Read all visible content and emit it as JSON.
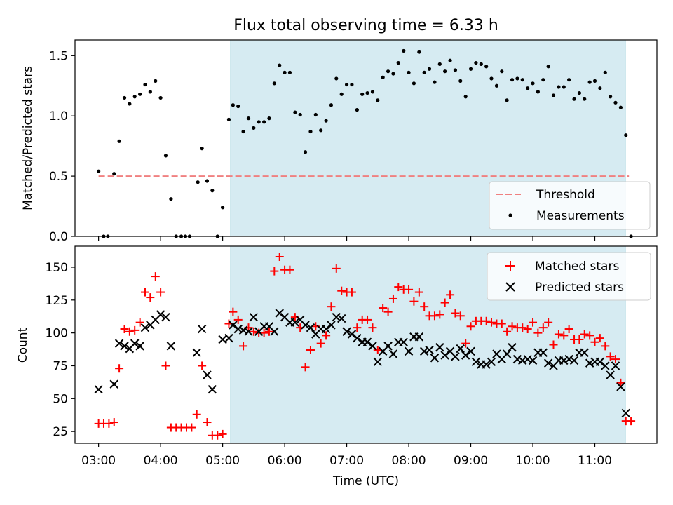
{
  "chart_data": [
    {
      "type": "scatter",
      "title": "Flux total observing time = 6.33 h",
      "ylabel": "Matched/Predicted stars",
      "xlabel": "",
      "x_unit": "hours UTC",
      "xlim": [
        2.62,
        12.0
      ],
      "ylim": [
        0,
        1.63
      ],
      "yticks": [
        0.0,
        0.5,
        1.0,
        1.5
      ],
      "ytick_labels": [
        "0.0",
        "0.5",
        "1.0",
        "1.5"
      ],
      "shaded_span": {
        "x_start": 5.1,
        "x_end": 11.42,
        "color": "#add8e6"
      },
      "threshold": {
        "name": "Threshold",
        "y": 0.5,
        "x_range": [
          3.0,
          11.55
        ],
        "color": "#f08080",
        "style": "dashed"
      },
      "series": [
        {
          "name": "Measurements",
          "marker": "dot",
          "color": "#000000",
          "x": [
            3.0,
            3.083,
            3.15,
            3.25,
            3.333,
            3.417,
            3.5,
            3.583,
            3.667,
            3.75,
            3.833,
            3.917,
            4.0,
            4.083,
            4.167,
            4.25,
            4.333,
            4.4,
            4.467,
            4.6,
            4.667,
            4.75,
            4.833,
            4.917,
            5.0,
            5.1,
            5.167,
            5.25,
            5.333,
            5.417,
            5.5,
            5.583,
            5.667,
            5.75,
            5.833,
            5.917,
            6.0,
            6.083,
            6.167,
            6.25,
            6.333,
            6.417,
            6.5,
            6.583,
            6.667,
            6.75,
            6.833,
            6.917,
            7.0,
            7.083,
            7.167,
            7.25,
            7.333,
            7.417,
            7.5,
            7.583,
            7.667,
            7.75,
            7.833,
            7.917,
            8.0,
            8.083,
            8.167,
            8.25,
            8.333,
            8.417,
            8.5,
            8.583,
            8.667,
            8.75,
            8.833,
            8.917,
            9.0,
            9.083,
            9.167,
            9.25,
            9.333,
            9.417,
            9.5,
            9.583,
            9.667,
            9.75,
            9.833,
            9.917,
            10.0,
            10.083,
            10.167,
            10.25,
            10.333,
            10.417,
            10.5,
            10.583,
            10.667,
            10.75,
            10.833,
            10.917,
            11.0,
            11.083,
            11.167,
            11.25,
            11.333,
            11.417,
            11.5,
            11.583
          ],
          "y": [
            0.54,
            0.0,
            0.0,
            0.52,
            0.79,
            1.15,
            1.1,
            1.16,
            1.18,
            1.26,
            1.2,
            1.29,
            1.15,
            0.67,
            0.31,
            0.0,
            0.0,
            0.0,
            0.0,
            0.45,
            0.73,
            0.46,
            0.38,
            0.0,
            0.24,
            0.97,
            1.09,
            1.08,
            0.87,
            0.98,
            0.9,
            0.95,
            0.95,
            0.98,
            1.27,
            1.42,
            1.36,
            1.36,
            1.03,
            1.01,
            0.7,
            0.87,
            1.01,
            0.88,
            0.96,
            1.09,
            1.31,
            1.18,
            1.26,
            1.26,
            1.05,
            1.18,
            1.19,
            1.2,
            1.13,
            1.32,
            1.37,
            1.35,
            1.44,
            1.54,
            1.36,
            1.27,
            1.53,
            1.36,
            1.39,
            1.28,
            1.43,
            1.37,
            1.46,
            1.38,
            1.29,
            1.16,
            1.39,
            1.44,
            1.43,
            1.41,
            1.31,
            1.25,
            1.37,
            1.13,
            1.3,
            1.31,
            1.3,
            1.23,
            1.27,
            1.2,
            1.3,
            1.41,
            1.17,
            1.24,
            1.24,
            1.3,
            1.14,
            1.19,
            1.14,
            1.28,
            1.29,
            1.23,
            1.36,
            1.16,
            1.11,
            1.07,
            0.84,
            0.0
          ]
        }
      ],
      "legend": {
        "placement": "lower right",
        "entries": [
          "Threshold",
          "Measurements"
        ]
      }
    },
    {
      "type": "scatter",
      "title": "",
      "ylabel": "Count",
      "xlabel": "Time (UTC)",
      "xlim": [
        2.62,
        12.0
      ],
      "ylim": [
        16,
        166
      ],
      "yticks": [
        25,
        50,
        75,
        100,
        125,
        150
      ],
      "ytick_labels": [
        "25",
        "50",
        "75",
        "100",
        "125",
        "150"
      ],
      "xticks": [
        3,
        4,
        5,
        6,
        7,
        8,
        9,
        10,
        11
      ],
      "xtick_labels": [
        "03:00",
        "04:00",
        "05:00",
        "06:00",
        "07:00",
        "08:00",
        "09:00",
        "10:00",
        "11:00"
      ],
      "shaded_span": {
        "x_start": 5.1,
        "x_end": 11.42,
        "color": "#add8e6"
      },
      "series": [
        {
          "name": "Matched stars",
          "marker": "plus",
          "color": "#ff0000",
          "x": [
            3.0,
            3.083,
            3.167,
            3.25,
            3.333,
            3.417,
            3.5,
            3.583,
            3.667,
            3.75,
            3.833,
            3.917,
            4.0,
            4.083,
            4.167,
            4.25,
            4.333,
            4.417,
            4.5,
            4.583,
            4.667,
            4.75,
            4.833,
            4.917,
            5.0,
            5.1,
            5.167,
            5.25,
            5.333,
            5.417,
            5.5,
            5.583,
            5.667,
            5.75,
            5.833,
            5.917,
            6.0,
            6.083,
            6.167,
            6.25,
            6.333,
            6.417,
            6.5,
            6.583,
            6.667,
            6.75,
            6.833,
            6.917,
            7.0,
            7.083,
            7.167,
            7.25,
            7.333,
            7.417,
            7.5,
            7.583,
            7.667,
            7.75,
            7.833,
            7.917,
            8.0,
            8.083,
            8.167,
            8.25,
            8.333,
            8.417,
            8.5,
            8.583,
            8.667,
            8.75,
            8.833,
            8.917,
            9.0,
            9.083,
            9.167,
            9.25,
            9.333,
            9.417,
            9.5,
            9.583,
            9.667,
            9.75,
            9.833,
            9.917,
            10.0,
            10.083,
            10.167,
            10.25,
            10.333,
            10.417,
            10.5,
            10.583,
            10.667,
            10.75,
            10.833,
            10.917,
            11.0,
            11.083,
            11.167,
            11.25,
            11.333,
            11.417,
            11.5,
            11.583
          ],
          "y": [
            31,
            31,
            31,
            32,
            73,
            103,
            101,
            102,
            108,
            131,
            127,
            143,
            131,
            75,
            28,
            28,
            28,
            28,
            28,
            38,
            75,
            32,
            22,
            22,
            23,
            107,
            116,
            110,
            90,
            104,
            101,
            100,
            100,
            101,
            147,
            158,
            148,
            148,
            112,
            104,
            74,
            87,
            105,
            92,
            98,
            120,
            149,
            132,
            131,
            131,
            104,
            110,
            110,
            104,
            87,
            119,
            116,
            126,
            135,
            133,
            133,
            124,
            131,
            120,
            113,
            113,
            114,
            123,
            129,
            115,
            113,
            92,
            105,
            109,
            109,
            109,
            108,
            107,
            107,
            101,
            105,
            104,
            104,
            103,
            108,
            100,
            104,
            108,
            91,
            99,
            98,
            103,
            95,
            95,
            99,
            98,
            93,
            96,
            90,
            82,
            80,
            62,
            33,
            33
          ]
        },
        {
          "name": "Predicted stars",
          "marker": "x",
          "color": "#000000",
          "x": [
            3.0,
            3.25,
            3.333,
            3.417,
            3.5,
            3.583,
            3.667,
            3.75,
            3.833,
            3.917,
            4.0,
            4.083,
            4.167,
            4.583,
            4.667,
            4.75,
            4.833,
            5.0,
            5.1,
            5.167,
            5.25,
            5.333,
            5.417,
            5.5,
            5.583,
            5.667,
            5.75,
            5.833,
            5.917,
            6.0,
            6.083,
            6.167,
            6.25,
            6.333,
            6.417,
            6.5,
            6.583,
            6.667,
            6.75,
            6.833,
            6.917,
            7.0,
            7.083,
            7.167,
            7.25,
            7.333,
            7.417,
            7.5,
            7.583,
            7.667,
            7.75,
            7.833,
            7.917,
            8.0,
            8.083,
            8.167,
            8.25,
            8.333,
            8.417,
            8.5,
            8.583,
            8.667,
            8.75,
            8.833,
            8.917,
            9.0,
            9.083,
            9.167,
            9.25,
            9.333,
            9.417,
            9.5,
            9.583,
            9.667,
            9.75,
            9.833,
            9.917,
            10.0,
            10.083,
            10.167,
            10.25,
            10.333,
            10.417,
            10.5,
            10.583,
            10.667,
            10.75,
            10.833,
            10.917,
            11.0,
            11.083,
            11.167,
            11.25,
            11.333,
            11.417,
            11.5
          ],
          "y": [
            57,
            61,
            92,
            90,
            88,
            92,
            90,
            104,
            106,
            110,
            114,
            112,
            90,
            85,
            103,
            68,
            57,
            95,
            96,
            106,
            103,
            102,
            101,
            112,
            101,
            105,
            105,
            101,
            115,
            112,
            108,
            108,
            110,
            106,
            104,
            99,
            103,
            103,
            106,
            112,
            111,
            101,
            99,
            96,
            93,
            93,
            90,
            78,
            86,
            90,
            84,
            93,
            93,
            86,
            97,
            97,
            86,
            87,
            81,
            89,
            83,
            86,
            82,
            88,
            83,
            86,
            78,
            76,
            76,
            78,
            84,
            80,
            84,
            89,
            80,
            79,
            80,
            79,
            85,
            85,
            77,
            75,
            79,
            79,
            80,
            79,
            85,
            85,
            77,
            78,
            78,
            75,
            68,
            75,
            59,
            39
          ]
        }
      ],
      "legend": {
        "placement": "upper right",
        "entries": [
          "Matched stars",
          "Predicted stars"
        ]
      }
    }
  ]
}
